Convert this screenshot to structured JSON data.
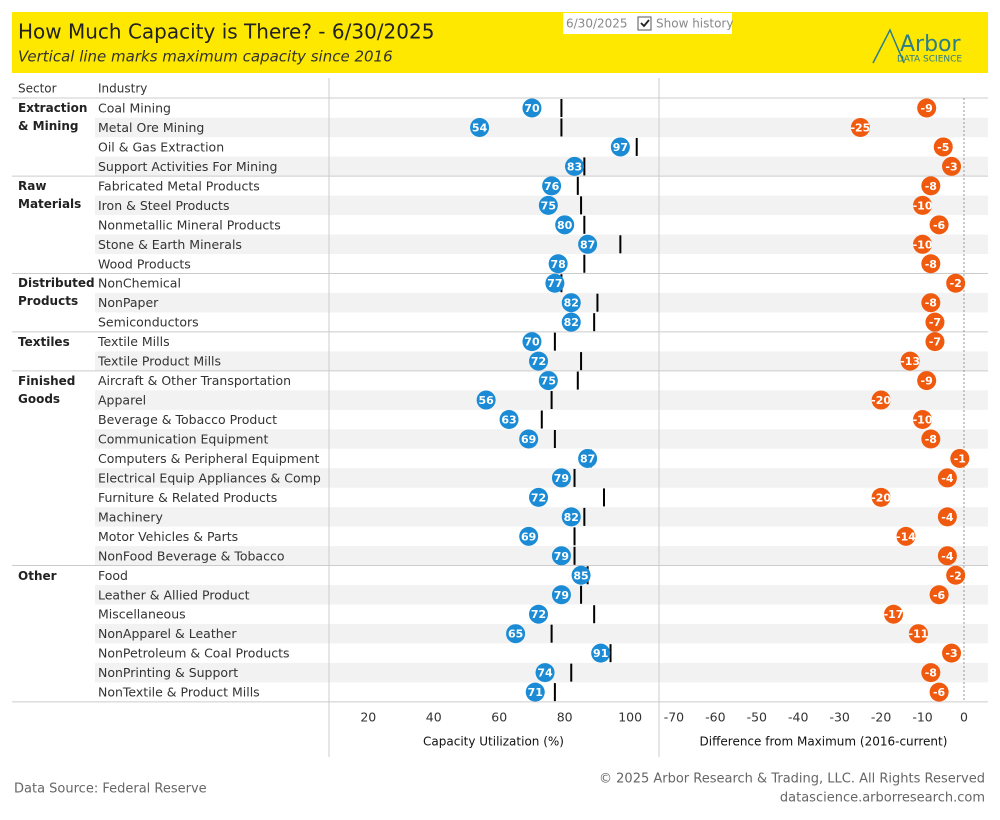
{
  "header": {
    "title": "How Much Capacity is There? - 6/30/2025",
    "subtitle": "Vertical line marks maximum capacity since 2016",
    "date": "6/30/2025",
    "show_history": "Show history",
    "logo": "Arbor",
    "logo_sub": "DATA SCIENCE"
  },
  "table": {
    "sector_header": "Sector",
    "industry_header": "Industry",
    "sectors": [
      {
        "name": "Extraction & Mining",
        "industries": [
          "Coal Mining",
          "Metal Ore Mining",
          "Oil & Gas Extraction",
          "Support Activities For Mining"
        ]
      },
      {
        "name": "Raw Materials",
        "industries": [
          "Fabricated Metal Products",
          "Iron & Steel Products",
          "Nonmetallic Mineral Products",
          "Stone & Earth Minerals",
          "Wood Products"
        ]
      },
      {
        "name": "Distributed Products",
        "industries": [
          "NonChemical",
          "NonPaper",
          "Semiconductors"
        ]
      },
      {
        "name": "Textiles",
        "industries": [
          "Textile Mills",
          "Textile Product Mills"
        ]
      },
      {
        "name": "Finished Goods",
        "industries": [
          "Aircraft & Other Transportation",
          "Apparel",
          "Beverage & Tobacco Product",
          "Communication Equipment",
          "Computers & Peripheral Equipment",
          "Electrical Equip Appliances & Comp",
          "Furniture & Related Products",
          "Machinery",
          "Motor Vehicles & Parts",
          "NonFood Beverage & Tobacco"
        ]
      },
      {
        "name": "Other",
        "industries": [
          "Food",
          "Leather & Allied Product",
          "Miscellaneous",
          "NonApparel & Leather",
          "NonPetroleum & Coal Products",
          "NonPrinting & Support",
          "NonTextile & Product Mills"
        ]
      }
    ]
  },
  "chart_data": [
    {
      "type": "dot",
      "xlabel": "Capacity Utilization (%)",
      "xlim": [
        8,
        108.5
      ],
      "xticks": [
        20,
        40,
        60,
        80,
        100
      ],
      "color": "#1a8bd4",
      "max_color": "#000000",
      "values": [
        70,
        54,
        97,
        83,
        76,
        75,
        80,
        87,
        78,
        77,
        82,
        82,
        70,
        72,
        75,
        56,
        63,
        69,
        87,
        79,
        72,
        82,
        69,
        79,
        85,
        79,
        72,
        65,
        91,
        74,
        71
      ],
      "max_values": [
        79,
        79,
        102,
        86,
        84,
        85,
        86,
        97,
        86,
        79,
        90,
        89,
        77,
        85,
        84,
        76,
        73,
        77,
        88,
        83,
        92,
        86,
        83,
        83,
        87,
        85,
        89,
        76,
        94,
        82,
        77
      ]
    },
    {
      "type": "dot",
      "xlabel": "Difference from Maximum (2016-current)",
      "xlim": [
        -73.6,
        5.8
      ],
      "xticks": [
        -70,
        -60,
        -50,
        -40,
        -30,
        -20,
        -10,
        0
      ],
      "color": "#f05a0f",
      "values": [
        -9,
        -25,
        -5,
        -3,
        -8,
        -10,
        -6,
        -10,
        -8,
        -2,
        -8,
        -7,
        -7,
        -13,
        -9,
        -20,
        -10,
        -8,
        -1,
        -4,
        -20,
        -4,
        -14,
        -4,
        -2,
        -6,
        -17,
        -11,
        -3,
        -8,
        -6
      ]
    }
  ],
  "footer": {
    "source": "Data Source: Federal Reserve",
    "copyright": "© 2025 Arbor Research & Trading, LLC. All Rights Reserved",
    "url": "datascience.arborresearch.com"
  }
}
